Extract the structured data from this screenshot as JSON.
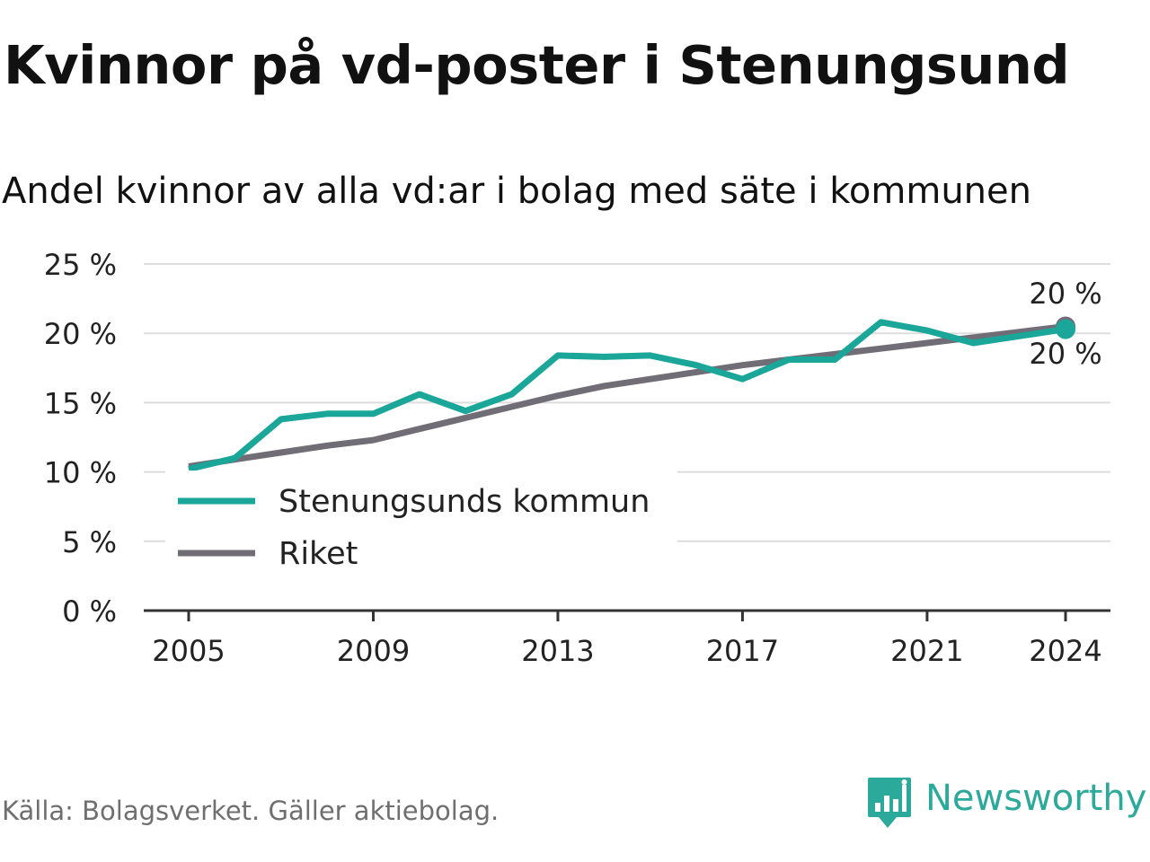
{
  "title": "Kvinnor på vd-poster i Stenungsund",
  "subtitle": "Andel kvinnor av alla vd:ar i bolag med säte i kommunen",
  "source": "Källa: Bolagsverket. Gäller aktiebolag.",
  "brand": {
    "name": "Newsworthy",
    "logo_icon": "newsworthy-bar-chart-logo-icon"
  },
  "colors": {
    "stenungsund": "#1aa698",
    "riket": "#706d76",
    "grid": "#dddddd",
    "axis": "#333333"
  },
  "chart_data": {
    "type": "line",
    "title": "Kvinnor på vd-poster i Stenungsund",
    "subtitle": "Andel kvinnor av alla vd:ar i bolag med säte i kommunen",
    "x": [
      2005,
      2006,
      2007,
      2008,
      2009,
      2010,
      2011,
      2012,
      2013,
      2014,
      2015,
      2016,
      2017,
      2018,
      2019,
      2020,
      2021,
      2022,
      2023,
      2024
    ],
    "series": [
      {
        "name": "Stenungsunds kommun",
        "color": "#1aa698",
        "values": [
          10.2,
          11.0,
          13.8,
          14.2,
          14.2,
          15.6,
          14.4,
          15.6,
          18.4,
          18.3,
          18.4,
          17.7,
          16.7,
          18.1,
          18.1,
          20.8,
          20.2,
          19.3,
          19.8,
          20.3
        ]
      },
      {
        "name": "Riket",
        "color": "#706d76",
        "values": [
          10.4,
          10.9,
          11.4,
          11.9,
          12.3,
          13.1,
          13.9,
          14.7,
          15.5,
          16.2,
          16.7,
          17.2,
          17.7,
          18.1,
          18.5,
          18.9,
          19.3,
          19.7,
          20.1,
          20.5
        ]
      }
    ],
    "end_labels": [
      "20 %",
      "20 %"
    ],
    "xticks": [
      2005,
      2009,
      2013,
      2017,
      2021,
      2024
    ],
    "xtick_labels": [
      "2005",
      "2009",
      "2013",
      "2017",
      "2021",
      "2024"
    ],
    "yticks": [
      0,
      5,
      10,
      15,
      20,
      25
    ],
    "ytick_labels": [
      "0 %",
      "5 %",
      "10 %",
      "15 %",
      "20 %",
      "25 %"
    ],
    "xlabel": "",
    "ylabel": "",
    "ylim": [
      0,
      25
    ],
    "xlim": [
      2004,
      2025
    ],
    "grid": true,
    "legend_position": "bottom-left"
  }
}
